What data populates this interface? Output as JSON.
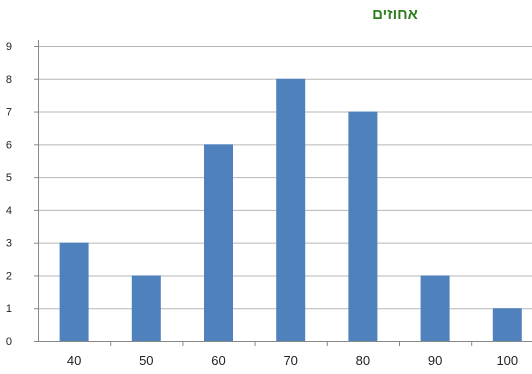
{
  "chart_data": {
    "type": "bar",
    "title": "אחוזים",
    "xlabel": "",
    "ylabel": "",
    "categories": [
      "40",
      "50",
      "60",
      "70",
      "80",
      "90",
      "100"
    ],
    "values": [
      3,
      2,
      6,
      8,
      7,
      2,
      1
    ],
    "ylim": [
      0,
      9
    ],
    "yticks": [
      "0",
      "1",
      "2",
      "3",
      "4",
      "5",
      "6",
      "7",
      "8",
      "9"
    ],
    "grid": true,
    "legend": "none",
    "bar_color": "#4f81bd",
    "grid_color": "#b7b7b7",
    "title_color": "#2e7d1e"
  }
}
